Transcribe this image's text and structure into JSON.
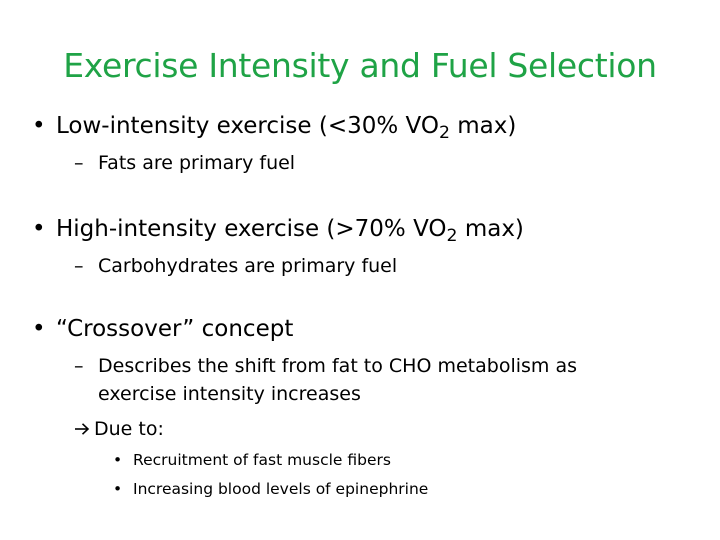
{
  "slide": {
    "title": "Exercise Intensity and Fuel Selection",
    "accent_color": "#1fa346",
    "bullets": [
      {
        "marker": "•",
        "text_before_sub": "Low-intensity exercise (<30% VO",
        "sub": "2",
        "text_after_sub": " max)",
        "sub_items": [
          {
            "marker": "–",
            "text": "Fats are primary fuel"
          }
        ]
      },
      {
        "marker": "•",
        "text_before_sub": "High-intensity exercise (>70% VO",
        "sub": "2",
        "text_after_sub": " max)",
        "sub_items": [
          {
            "marker": "–",
            "text": "Carbohydrates are primary fuel"
          }
        ]
      },
      {
        "marker": "•",
        "text": "“Crossover” concept",
        "sub_items": [
          {
            "marker": "–",
            "text_line1": "Describes the shift from fat to CHO metabolism as",
            "text_line2": "exercise intensity increases"
          }
        ],
        "arrow_item": {
          "arrow_icon": "right-arrow-icon",
          "text": "Due to:",
          "items": [
            {
              "marker": "•",
              "text": "Recruitment of fast muscle fibers"
            },
            {
              "marker": "•",
              "text": "Increasing blood levels of epinephrine"
            }
          ]
        }
      }
    ]
  }
}
